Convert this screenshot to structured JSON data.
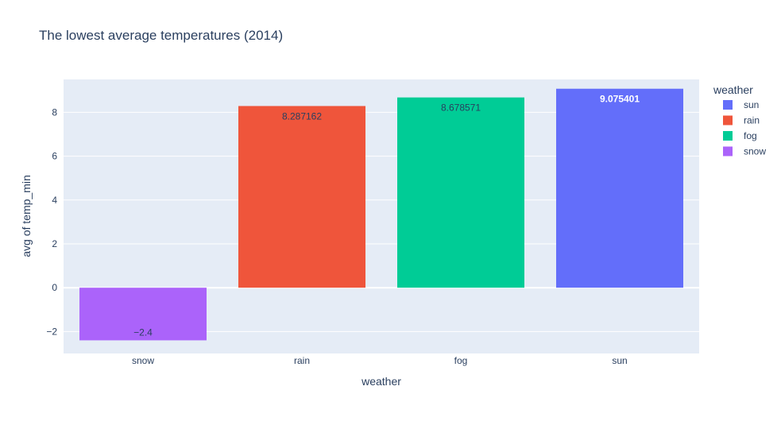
{
  "chart_data": {
    "type": "bar",
    "title": "The lowest average temperatures (2014)",
    "xlabel": "weather",
    "ylabel": "avg of temp_min",
    "categories": [
      "snow",
      "rain",
      "fog",
      "sun"
    ],
    "values": [
      -2.4,
      8.287162,
      8.678571,
      9.075401
    ],
    "data_labels": [
      "−2.4",
      "8.287162",
      "8.678571",
      "9.075401"
    ],
    "colors": [
      "#ab63fa",
      "#ef553b",
      "#00cc96",
      "#636efa"
    ],
    "data_label_colors": [
      "#2a3f5f",
      "#2a3f5f",
      "#2a3f5f",
      "#ffffff"
    ],
    "y_ticks": [
      -2,
      0,
      2,
      4,
      6,
      8
    ],
    "y_tick_labels": [
      "−2",
      "0",
      "2",
      "4",
      "6",
      "8"
    ],
    "ylim": [
      -3.0,
      9.5
    ],
    "grid": true,
    "plot_background": "#e5ecf6",
    "legend": {
      "title": "weather",
      "placement": "top-right",
      "entries": [
        {
          "name": "sun",
          "color": "#636efa"
        },
        {
          "name": "rain",
          "color": "#ef553b"
        },
        {
          "name": "fog",
          "color": "#00cc96"
        },
        {
          "name": "snow",
          "color": "#ab63fa"
        }
      ]
    }
  }
}
